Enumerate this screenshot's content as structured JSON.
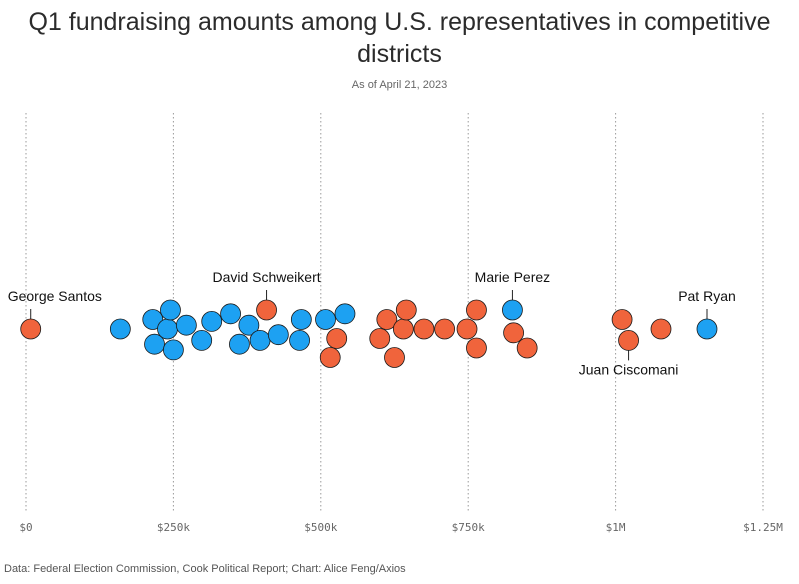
{
  "title": "Q1 fundraising amounts among U.S. representatives in competitive districts",
  "subtitle": "As of April 21, 2023",
  "footer": "Data: Federal Election Commission, Cook Political Report; Chart: Alice Feng/Axios",
  "colors": {
    "republican": "#f0643c",
    "democrat": "#1da1f2",
    "grid": "#9a9a9a"
  },
  "chart_data": {
    "type": "scatter",
    "subtype": "beeswarm",
    "xlim": [
      0,
      1250000
    ],
    "x_ticks": [
      {
        "value": 0,
        "label": "$0"
      },
      {
        "value": 250000,
        "label": "$250k"
      },
      {
        "value": 500000,
        "label": "$500k"
      },
      {
        "value": 750000,
        "label": "$750k"
      },
      {
        "value": 1000000,
        "label": "$1M"
      },
      {
        "value": 1250000,
        "label": "$1.25M"
      }
    ],
    "grid": true,
    "series": [
      {
        "party": "R",
        "color_key": "republican",
        "points": [
          {
            "x": 8000,
            "row": 0
          },
          {
            "x": 408000,
            "row": -1
          },
          {
            "x": 527000,
            "row": 0.5
          },
          {
            "x": 516000,
            "row": 1.5
          },
          {
            "x": 600000,
            "row": 0.5
          },
          {
            "x": 612000,
            "row": -0.5
          },
          {
            "x": 625000,
            "row": 1.5
          },
          {
            "x": 640000,
            "row": 0
          },
          {
            "x": 645000,
            "row": -1
          },
          {
            "x": 675000,
            "row": 0
          },
          {
            "x": 710000,
            "row": 0
          },
          {
            "x": 748000,
            "row": 0
          },
          {
            "x": 764000,
            "row": -1
          },
          {
            "x": 764000,
            "row": 1
          },
          {
            "x": 827000,
            "row": 0.2
          },
          {
            "x": 850000,
            "row": 1
          },
          {
            "x": 1011000,
            "row": -0.5
          },
          {
            "x": 1022000,
            "row": 0.6
          },
          {
            "x": 1077000,
            "row": 0
          }
        ]
      },
      {
        "party": "D",
        "color_key": "democrat",
        "points": [
          {
            "x": 160000,
            "row": 0
          },
          {
            "x": 215000,
            "row": -0.5
          },
          {
            "x": 218000,
            "row": 0.8
          },
          {
            "x": 240000,
            "row": 0
          },
          {
            "x": 245000,
            "row": -1
          },
          {
            "x": 250000,
            "row": 1.1
          },
          {
            "x": 272000,
            "row": -0.2
          },
          {
            "x": 298000,
            "row": 0.6
          },
          {
            "x": 315000,
            "row": -0.4
          },
          {
            "x": 347000,
            "row": -0.8
          },
          {
            "x": 362000,
            "row": 0.8
          },
          {
            "x": 378000,
            "row": -0.2
          },
          {
            "x": 397000,
            "row": 0.6
          },
          {
            "x": 428000,
            "row": 0.3
          },
          {
            "x": 464000,
            "row": 0.6
          },
          {
            "x": 467000,
            "row": -0.5
          },
          {
            "x": 508000,
            "row": -0.5
          },
          {
            "x": 541000,
            "row": -0.8
          },
          {
            "x": 825000,
            "row": -1
          },
          {
            "x": 1155000,
            "row": 0
          }
        ]
      }
    ],
    "annotations": [
      {
        "text": "George Santos",
        "x": 8000,
        "row": 0,
        "position": "above-right"
      },
      {
        "text": "David Schweikert",
        "x": 408000,
        "row": -1,
        "position": "above"
      },
      {
        "text": "Marie Perez",
        "x": 825000,
        "row": -1,
        "position": "above"
      },
      {
        "text": "Pat Ryan",
        "x": 1155000,
        "row": 0,
        "position": "above"
      },
      {
        "text": "Juan Ciscomani",
        "x": 1022000,
        "row": 0.6,
        "position": "below"
      }
    ]
  }
}
